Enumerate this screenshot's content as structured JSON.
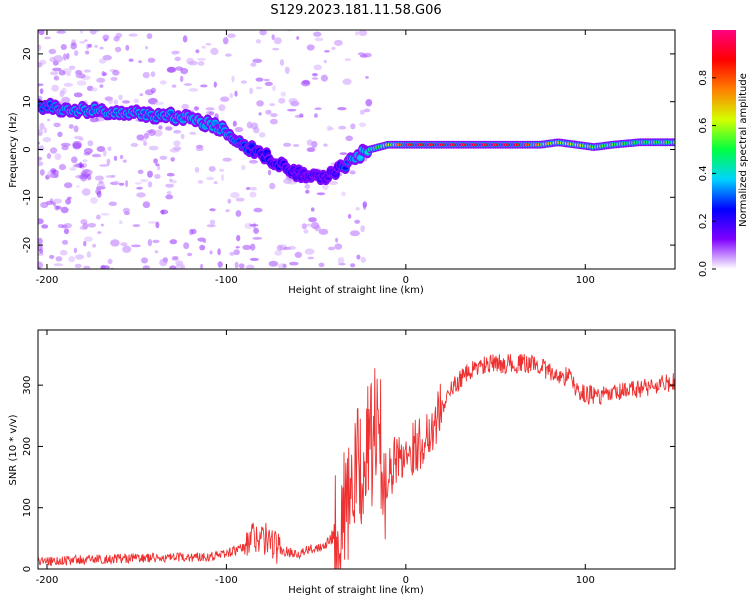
{
  "title": "S129.2023.181.11.58.G06",
  "chart_data": [
    {
      "type": "heatmap",
      "xlabel": "Height of straight line (km)",
      "ylabel": "Frequency (Hz)",
      "xlim": [
        -205,
        150
      ],
      "ylim": [
        -25,
        25
      ],
      "xticks": [
        -200,
        -100,
        0,
        100
      ],
      "yticks": [
        -20,
        -10,
        0,
        10,
        20
      ],
      "colorbar": {
        "label": "Normalized spectral amplitude",
        "range": [
          0,
          1
        ],
        "ticks": [
          "0.0",
          "0.2",
          "0.4",
          "0.6",
          "0.8"
        ],
        "colormap": [
          "#ffffff",
          "#7f00ff",
          "#0000ff",
          "#00d4ff",
          "#00ff40",
          "#d4ff00",
          "#ff8000",
          "#ff0000",
          "#ff0080"
        ]
      },
      "ridge": {
        "x": [
          -205,
          -190,
          -170,
          -150,
          -130,
          -115,
          -100,
          -90,
          -80,
          -70,
          -60,
          -50,
          -40,
          -30,
          -20,
          -10,
          0,
          20,
          40,
          60,
          75,
          85,
          95,
          105,
          115,
          130,
          150
        ],
        "freq": [
          9,
          8.5,
          8,
          7.5,
          7,
          6,
          4,
          1,
          -1,
          -3,
          -5,
          -6,
          -5,
          -2,
          0,
          1,
          1,
          1,
          1,
          1,
          1,
          1.5,
          1,
          0.5,
          1,
          1.5,
          1.5
        ],
        "amplitude": [
          0.25,
          0.3,
          0.3,
          0.3,
          0.3,
          0.35,
          0.3,
          0.25,
          0.2,
          0.2,
          0.15,
          0.15,
          0.15,
          0.3,
          0.45,
          0.6,
          0.85,
          0.9,
          0.9,
          0.9,
          0.7,
          0.6,
          0.65,
          0.55,
          0.55,
          0.5,
          0.55
        ]
      }
    },
    {
      "type": "line",
      "xlabel": "Height of straight line (km)",
      "ylabel": "SNR (10 * v/v)",
      "xlim": [
        -205,
        150
      ],
      "ylim": [
        0,
        390
      ],
      "xticks": [
        -200,
        -100,
        0,
        100
      ],
      "yticks": [
        0,
        100,
        200,
        300
      ],
      "color": "#ee3030",
      "series": [
        {
          "x": [
            -205,
            -180,
            -150,
            -130,
            -115,
            -105,
            -95,
            -90,
            -85,
            -80,
            -75,
            -70,
            -65,
            -60,
            -55,
            -50,
            -45,
            -40,
            -35,
            -30,
            -25,
            -20,
            -17,
            -15,
            -12,
            -10,
            -5,
            0,
            5,
            10,
            15,
            20,
            25,
            30,
            35,
            40,
            50,
            60,
            70,
            75,
            80,
            85,
            90,
            93,
            95,
            100,
            110,
            120,
            130,
            140,
            150
          ],
          "values": [
            12,
            15,
            18,
            18,
            20,
            22,
            30,
            35,
            55,
            50,
            45,
            30,
            28,
            25,
            30,
            35,
            40,
            60,
            80,
            130,
            170,
            200,
            230,
            220,
            160,
            150,
            180,
            190,
            200,
            210,
            235,
            265,
            290,
            310,
            320,
            330,
            335,
            335,
            335,
            333,
            320,
            315,
            315,
            310,
            290,
            285,
            282,
            288,
            295,
            300,
            305
          ]
        }
      ]
    }
  ]
}
